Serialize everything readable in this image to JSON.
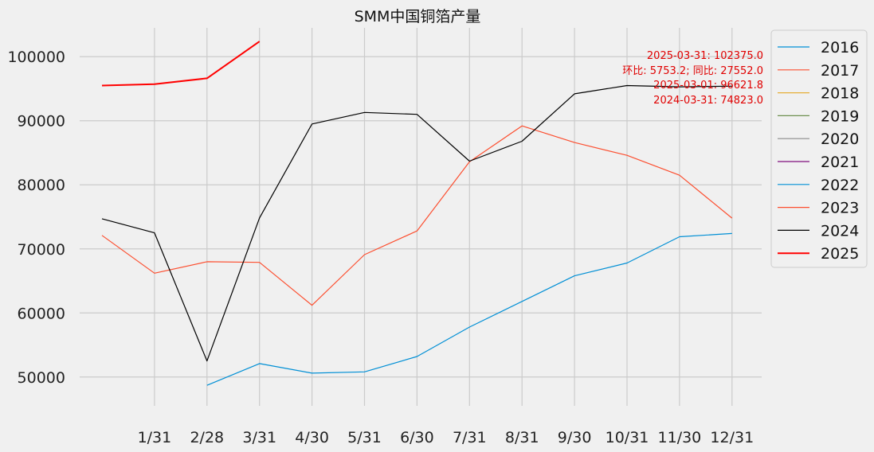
{
  "chart_data": {
    "type": "line",
    "title": "SMM中国铜箔产量",
    "xlabel": "",
    "ylabel": "",
    "categories": [
      "1/31",
      "2/28",
      "3/31",
      "4/30",
      "5/31",
      "6/30",
      "7/31",
      "8/31",
      "9/30",
      "10/31",
      "11/30",
      "12/31"
    ],
    "y_ticks": [
      50000,
      60000,
      70000,
      80000,
      90000,
      100000
    ],
    "ylim": [
      45500,
      104500
    ],
    "grid": true,
    "legend_position": "outside-right",
    "legend": [
      "2016",
      "2017",
      "2018",
      "2019",
      "2020",
      "2021",
      "2022",
      "2023",
      "2024",
      "2025"
    ],
    "colors": {
      "2016": "#008fd5",
      "2017": "#fc4f30",
      "2018": "#e5ae38",
      "2019": "#6d904f",
      "2020": "#8b8b8b",
      "2021": "#810f7c",
      "2022": "#008fd5",
      "2023": "#fc4f30",
      "2024": "#000000",
      "2025": "#ff0000"
    },
    "series": [
      {
        "name": "2022",
        "x": [
          2,
          3,
          4,
          5,
          6,
          7,
          8,
          9,
          10,
          11,
          12
        ],
        "values": [
          48700,
          52100,
          50600,
          50800,
          53200,
          57800,
          61800,
          65800,
          67800,
          71900,
          72400
        ]
      },
      {
        "name": "2023",
        "x": [
          0,
          1,
          2,
          3,
          4,
          5,
          6,
          7,
          8,
          9,
          10,
          11,
          12
        ],
        "values": [
          72100,
          66200,
          68000,
          67900,
          61200,
          69100,
          72800,
          83600,
          89200,
          86600,
          84600,
          81500,
          74800
        ]
      },
      {
        "name": "2024",
        "x": [
          0,
          1,
          2,
          3,
          4,
          5,
          6,
          7,
          8,
          9,
          10,
          11,
          12
        ],
        "values": [
          74700,
          72500,
          52500,
          74823,
          89500,
          91300,
          91000,
          83700,
          86800,
          94200,
          95500,
          95300,
          95400
        ]
      },
      {
        "name": "2025",
        "x": [
          0,
          1,
          2,
          3
        ],
        "values": [
          95500,
          95700,
          96621.8,
          102375
        ]
      }
    ],
    "annotations": [
      "2025-03-31: 102375.0",
      "环比: 5753.2; 同比: 27552.0",
      "2025-03-01: 96621.8",
      "2024-03-31: 74823.0"
    ]
  }
}
